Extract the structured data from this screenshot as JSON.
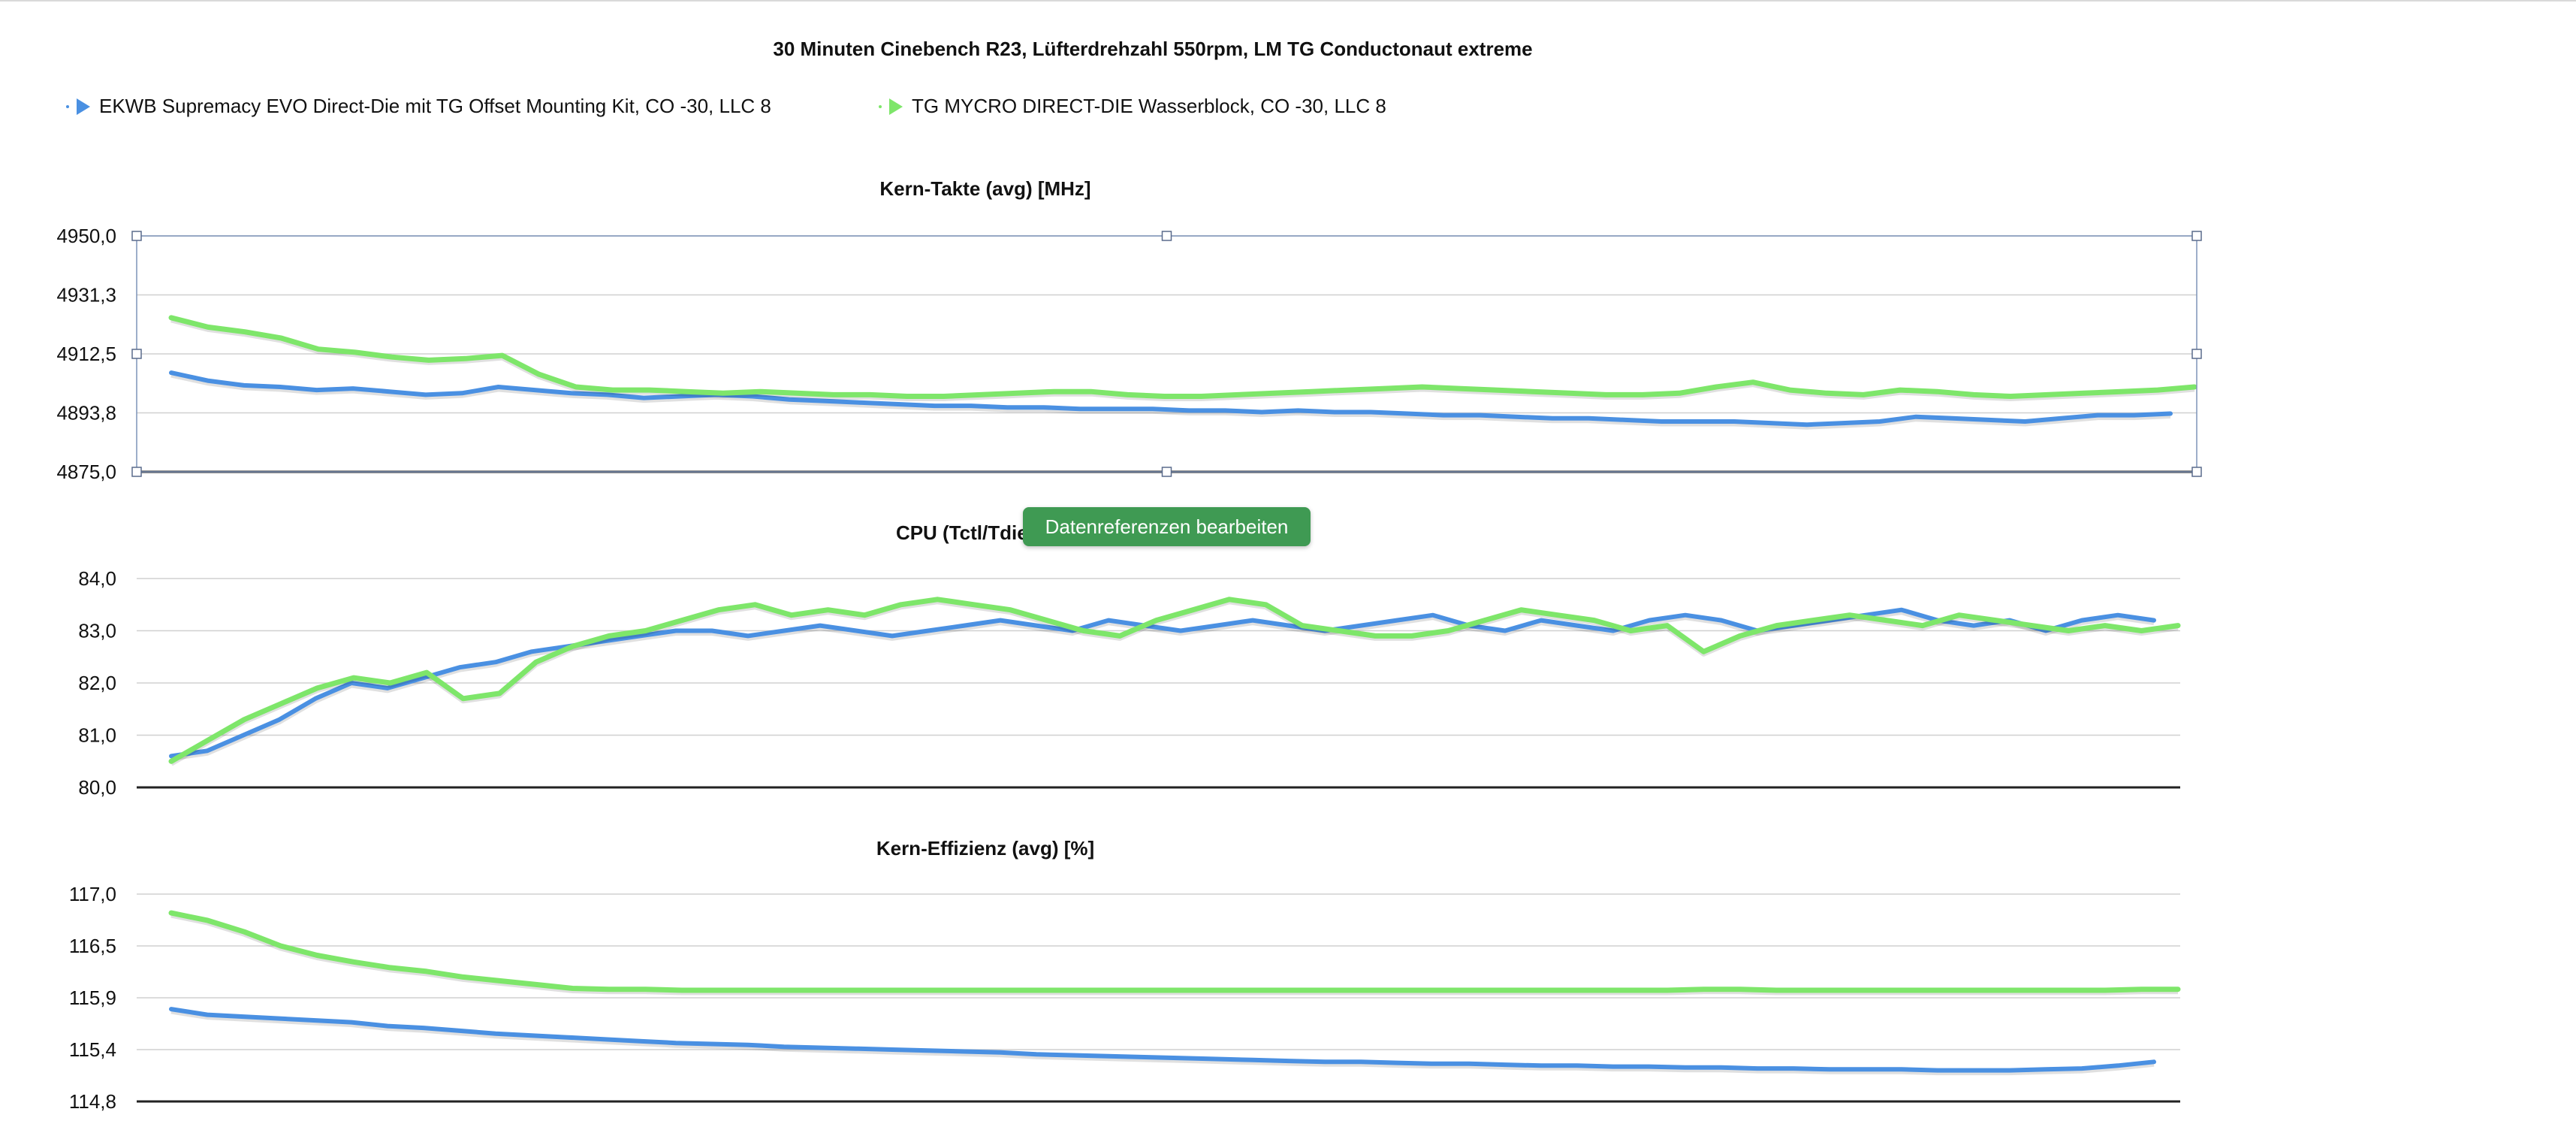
{
  "title": "30 Minuten Cinebench R23, Lüfterdrehzahl 550rpm,  LM TG Conductonaut extreme",
  "legend": [
    {
      "label": "EKWB Supremacy EVO Direct-Die mit TG Offset Mounting Kit, CO -30, LLC 8",
      "color": "#4a90e2"
    },
    {
      "label": "TG MYCRO DIRECT-DIE Wasserblock, CO -30, LLC 8",
      "color": "#7ee66a"
    }
  ],
  "tooltip": {
    "label": "Datenreferenzen bearbeiten"
  },
  "chart_data": [
    {
      "type": "line",
      "title": "Kern-Takte (avg) [MHz]",
      "ylim": [
        4875.0,
        4950.0
      ],
      "yticks": [
        "4950,0",
        "4931,3",
        "4912,5",
        "4893,8",
        "4875,0"
      ],
      "series": [
        {
          "name": "EKWB Supremacy EVO Direct-Die mit TG Offset Mounting Kit, CO -30, LLC 8",
          "values": [
            4906.5,
            4904.0,
            4902.5,
            4902.0,
            4901.0,
            4901.5,
            4900.5,
            4899.5,
            4900.0,
            4902.0,
            4901.0,
            4900.0,
            4899.5,
            4898.5,
            4899.0,
            4899.5,
            4899.0,
            4898.0,
            4897.5,
            4897.0,
            4896.5,
            4896.0,
            4896.0,
            4895.5,
            4895.5,
            4895.0,
            4895.0,
            4895.0,
            4894.5,
            4894.5,
            4894.0,
            4894.5,
            4894.0,
            4894.0,
            4893.5,
            4893.0,
            4893.0,
            4892.5,
            4892.0,
            4892.0,
            4891.5,
            4891.0,
            4891.0,
            4891.0,
            4890.5,
            4890.0,
            4890.5,
            4891.0,
            4892.5,
            4892.0,
            4891.5,
            4891.0,
            4892.0,
            4893.0,
            4893.0,
            4893.5
          ]
        },
        {
          "name": "TG MYCRO DIRECT-DIE Wasserblock, CO -30, LLC 8",
          "values": [
            4924.0,
            4921.0,
            4919.5,
            4917.5,
            4914.0,
            4913.0,
            4911.5,
            4910.5,
            4911.0,
            4912.0,
            4906.0,
            4902.0,
            4901.0,
            4901.0,
            4900.5,
            4900.0,
            4900.5,
            4900.0,
            4899.5,
            4899.5,
            4899.0,
            4899.0,
            4899.5,
            4900.0,
            4900.5,
            4900.5,
            4899.5,
            4899.0,
            4899.0,
            4899.5,
            4900.0,
            4900.5,
            4901.0,
            4901.5,
            4902.0,
            4901.5,
            4901.0,
            4900.5,
            4900.0,
            4899.5,
            4899.5,
            4900.0,
            4902.0,
            4903.5,
            4901.0,
            4900.0,
            4899.5,
            4901.0,
            4900.5,
            4899.5,
            4899.0,
            4899.5,
            4900.0,
            4900.5,
            4901.0,
            4902.0
          ]
        }
      ]
    },
    {
      "type": "line",
      "title": "CPU (Tctl/Tdie) [°C]",
      "ylim": [
        80.0,
        84.0
      ],
      "yticks": [
        "84,0",
        "83,0",
        "82,0",
        "81,0",
        "80,0"
      ],
      "series": [
        {
          "name": "EKWB Supremacy EVO Direct-Die mit TG Offset Mounting Kit, CO -30, LLC 8",
          "values": [
            80.6,
            80.7,
            81.0,
            81.3,
            81.7,
            82.0,
            81.9,
            82.1,
            82.3,
            82.4,
            82.6,
            82.7,
            82.8,
            82.9,
            83.0,
            83.0,
            82.9,
            83.0,
            83.1,
            83.0,
            82.9,
            83.0,
            83.1,
            83.2,
            83.1,
            83.0,
            83.2,
            83.1,
            83.0,
            83.1,
            83.2,
            83.1,
            83.0,
            83.1,
            83.2,
            83.3,
            83.1,
            83.0,
            83.2,
            83.1,
            83.0,
            83.2,
            83.3,
            83.2,
            83.0,
            83.1,
            83.2,
            83.3,
            83.4,
            83.2,
            83.1,
            83.2,
            83.0,
            83.2,
            83.3,
            83.2
          ]
        },
        {
          "name": "TG MYCRO DIRECT-DIE Wasserblock, CO -30, LLC 8",
          "values": [
            80.5,
            80.9,
            81.3,
            81.6,
            81.9,
            82.1,
            82.0,
            82.2,
            81.7,
            81.8,
            82.4,
            82.7,
            82.9,
            83.0,
            83.2,
            83.4,
            83.5,
            83.3,
            83.4,
            83.3,
            83.5,
            83.6,
            83.5,
            83.4,
            83.2,
            83.0,
            82.9,
            83.2,
            83.4,
            83.6,
            83.5,
            83.1,
            83.0,
            82.9,
            82.9,
            83.0,
            83.2,
            83.4,
            83.3,
            83.2,
            83.0,
            83.1,
            82.6,
            82.9,
            83.1,
            83.2,
            83.3,
            83.2,
            83.1,
            83.3,
            83.2,
            83.1,
            83.0,
            83.1,
            83.0,
            83.1
          ]
        }
      ]
    },
    {
      "type": "line",
      "title": "Kern-Effizienz (avg) [%]",
      "ylim": [
        114.8,
        117.0
      ],
      "yticks": [
        "117,0",
        "116,5",
        "115,9",
        "115,4",
        "114,8"
      ],
      "series": [
        {
          "name": "EKWB Supremacy EVO Direct-Die mit TG Offset Mounting Kit, CO -30, LLC 8",
          "values": [
            115.78,
            115.72,
            115.7,
            115.68,
            115.66,
            115.64,
            115.6,
            115.58,
            115.55,
            115.52,
            115.5,
            115.48,
            115.46,
            115.44,
            115.42,
            115.41,
            115.4,
            115.38,
            115.37,
            115.36,
            115.35,
            115.34,
            115.33,
            115.32,
            115.3,
            115.29,
            115.28,
            115.27,
            115.26,
            115.25,
            115.24,
            115.23,
            115.22,
            115.22,
            115.21,
            115.2,
            115.2,
            115.19,
            115.18,
            115.18,
            115.17,
            115.17,
            115.16,
            115.16,
            115.15,
            115.15,
            115.14,
            115.14,
            115.14,
            115.13,
            115.13,
            115.13,
            115.14,
            115.15,
            115.18,
            115.22
          ]
        },
        {
          "name": "TG MYCRO DIRECT-DIE Wasserblock, CO -30, LLC 8",
          "values": [
            116.8,
            116.72,
            116.6,
            116.45,
            116.35,
            116.28,
            116.22,
            116.18,
            116.12,
            116.08,
            116.04,
            116.0,
            115.99,
            115.99,
            115.98,
            115.98,
            115.98,
            115.98,
            115.98,
            115.98,
            115.98,
            115.98,
            115.98,
            115.98,
            115.98,
            115.98,
            115.98,
            115.98,
            115.98,
            115.98,
            115.98,
            115.98,
            115.98,
            115.98,
            115.98,
            115.98,
            115.98,
            115.98,
            115.98,
            115.98,
            115.98,
            115.98,
            115.99,
            115.99,
            115.98,
            115.98,
            115.98,
            115.98,
            115.98,
            115.98,
            115.98,
            115.98,
            115.98,
            115.98,
            115.99,
            115.99
          ]
        }
      ]
    }
  ]
}
